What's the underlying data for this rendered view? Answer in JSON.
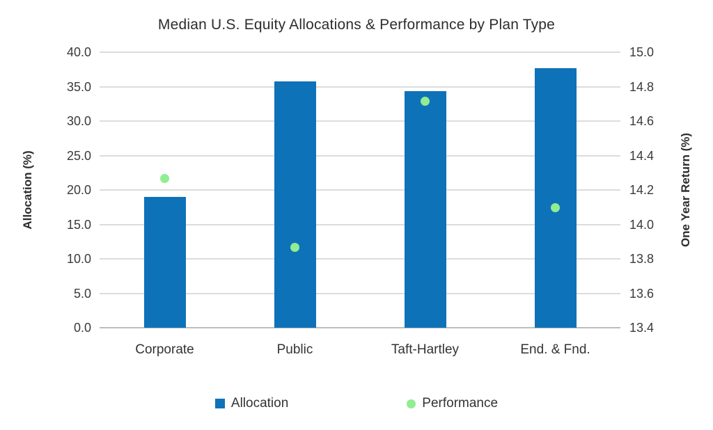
{
  "chart_data": {
    "type": "bar",
    "title": "Median U.S. Equity Allocations & Performance by Plan Type",
    "categories": [
      "Corporate",
      "Public",
      "Taft-Hartley",
      "End. & Fnd."
    ],
    "series": [
      {
        "name": "Allocation",
        "type": "bar",
        "axis": "left",
        "values": [
          19.0,
          35.8,
          34.3,
          37.7
        ],
        "color": "#0e72b9"
      },
      {
        "name": "Performance",
        "type": "scatter",
        "axis": "right",
        "values": [
          14.16,
          13.81,
          14.55,
          14.01
        ],
        "color": "#90ee90"
      }
    ],
    "left_axis": {
      "label": "Allocation (%)",
      "min": 0,
      "max": 40,
      "step": 5,
      "decimals": 1
    },
    "right_axis": {
      "label": "One Year Return (%)",
      "min": 13.4,
      "max": 14.8,
      "step": 0.2,
      "decimals": 1
    },
    "grid": true,
    "legend_position": "bottom",
    "colors": {
      "gridline": "#dcdcdc",
      "axis_line": "#bdbdbd",
      "text": "#3a3a3a"
    }
  }
}
